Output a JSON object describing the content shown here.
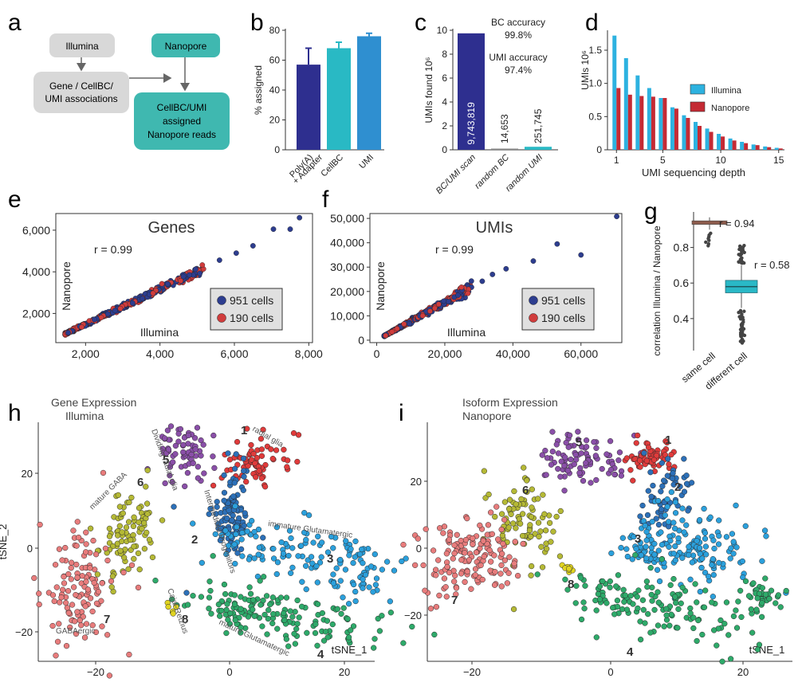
{
  "panel_letters": [
    "a",
    "b",
    "c",
    "d",
    "e",
    "f",
    "g",
    "h",
    "i"
  ],
  "colors": {
    "gray_box": "#d8d8d8",
    "teal_box": "#3fb8b0",
    "navy": "#2e2f8f",
    "cyan": "#29b9c4",
    "blue": "#2f8fd0",
    "illumina": "#2db2e0",
    "nanopore": "#c42a34",
    "dot_blue": "#2d3d8f",
    "dot_red": "#d03c3c",
    "box_teal": "#29b8c6",
    "box_brown": "#8d5b4c",
    "c1": "#e03b3b",
    "c2": "#2c70b8",
    "c3": "#2ba0dc",
    "c4": "#2eaa6a",
    "c5": "#8a4fa8",
    "c6": "#b5b935",
    "c7": "#e87c7c",
    "c8": "#e0d320"
  },
  "panel_a": {
    "illumina": "Illumina",
    "nanopore": "Nanopore",
    "assoc_l1": "Gene / CellBC/",
    "assoc_l2": "UMI associations",
    "assigned_l1": "CellBC/UMI",
    "assigned_l2": "assigned",
    "assigned_l3": "Nanopore reads"
  },
  "chart_data": [
    {
      "panel": "b",
      "type": "bar",
      "categories": [
        "Poly(A) + Adapter",
        "CellBC",
        "UMI"
      ],
      "category_lines": [
        [
          "Poly(A)",
          "+ Adapter"
        ],
        [
          "CellBC"
        ],
        [
          "UMI"
        ]
      ],
      "values": [
        57,
        68,
        76
      ],
      "errors": [
        11,
        4,
        2
      ],
      "ylabel": "% assigned",
      "ylim": [
        0,
        80
      ],
      "yticks": [
        "0",
        "20",
        "40",
        "60",
        "80"
      ]
    },
    {
      "panel": "c",
      "type": "bar",
      "categories": [
        "BC/UMI scan",
        "random BC",
        "random UMI"
      ],
      "values": [
        9.743819,
        0.014653,
        0.251745
      ],
      "value_labels": [
        "9,743,819",
        "14,653",
        "251,745"
      ],
      "ylabel": "UMIs found 10⁶",
      "ylim": [
        0,
        10
      ],
      "yticks": [
        "0",
        "2",
        "4",
        "6",
        "8",
        "10"
      ],
      "annotations": [
        "BC accuracy",
        "99.8%",
        "UMI  accuracy",
        "97.4%"
      ]
    },
    {
      "panel": "d",
      "type": "bar",
      "xlabel": "UMI sequencing depth",
      "ylabel": "UMIs 10⁶",
      "ylim": [
        0,
        1.8
      ],
      "yticks": [
        "0",
        "0.5",
        "1.0",
        "1.5"
      ],
      "xticks": [
        "1",
        "5",
        "10",
        "15"
      ],
      "x": [
        1,
        2,
        3,
        4,
        5,
        6,
        7,
        8,
        9,
        10,
        11,
        12,
        13,
        14,
        15
      ],
      "series": [
        {
          "name": "Illumina",
          "values": [
            1.72,
            1.38,
            1.12,
            0.93,
            0.78,
            0.64,
            0.52,
            0.42,
            0.32,
            0.24,
            0.17,
            0.12,
            0.08,
            0.05,
            0.03
          ]
        },
        {
          "name": "Nanopore",
          "values": [
            0.93,
            0.83,
            0.81,
            0.8,
            0.78,
            0.62,
            0.48,
            0.36,
            0.27,
            0.2,
            0.14,
            0.1,
            0.07,
            0.04,
            0.02
          ]
        }
      ]
    },
    {
      "panel": "e",
      "type": "scatter",
      "title": "Genes",
      "xlabel": "Illumina",
      "ylabel": "Nanopore",
      "annotation": "r = 0.99",
      "xlim": [
        1200,
        8100
      ],
      "ylim": [
        600,
        6800
      ],
      "xticks": [
        "2,000",
        "4,000",
        "6,000",
        "8,000"
      ],
      "yticks": [
        "2,000",
        "4,000",
        "6,000"
      ],
      "series": [
        {
          "name": "951 cells"
        },
        {
          "name": "190 cells"
        }
      ]
    },
    {
      "panel": "f",
      "type": "scatter",
      "title": "UMIs",
      "xlabel": "Illumina",
      "ylabel": "Nanopore",
      "annotation": "r = 0.99",
      "xlim": [
        -2000,
        72000
      ],
      "ylim": [
        -1000,
        52000
      ],
      "xticks": [
        "0",
        "20,000",
        "40,000",
        "60,000"
      ],
      "yticks": [
        "0",
        "10,000",
        "20,000",
        "30,000",
        "40,000",
        "50,000"
      ],
      "series": [
        {
          "name": "951 cells"
        },
        {
          "name": "190 cells"
        }
      ]
    },
    {
      "panel": "g",
      "type": "box",
      "categories": [
        "same cell",
        "different cell"
      ],
      "ylabel": "correlation Illumina / Nanopore",
      "ylim": [
        0.22,
        1.0
      ],
      "yticks": [
        "0.4",
        "0.6",
        "0.8"
      ],
      "annotations": [
        "r = 0.94",
        "r = 0.58"
      ],
      "medians": [
        0.94,
        0.58
      ]
    },
    {
      "panel": "h",
      "type": "scatter",
      "title_l1": "Gene Expression",
      "title_l2": "Illumina",
      "xlabel": "tSNE_1",
      "ylabel": "tSNE_2",
      "xticks": [
        "−20",
        "0",
        "20"
      ],
      "yticks": [
        "20",
        "0",
        "−20"
      ],
      "cluster_labels": [
        "radial glia",
        "Intermediate Progenitors",
        "immature Glutamatergic",
        "mature Glutamatergic",
        "Dividing radial glia",
        "mature GABA",
        "GABAergic",
        "Cajal-Retzius"
      ]
    },
    {
      "panel": "i",
      "type": "scatter",
      "title_l1": "Isoform Expression",
      "title_l2": "Nanopore",
      "xlabel": "tSNE_1",
      "xticks": [
        "−20",
        "0",
        "20"
      ],
      "yticks": [
        "20",
        "0",
        "−20"
      ]
    }
  ],
  "cluster_numbers": [
    "1",
    "2",
    "3",
    "4",
    "5",
    "6",
    "7",
    "8"
  ]
}
